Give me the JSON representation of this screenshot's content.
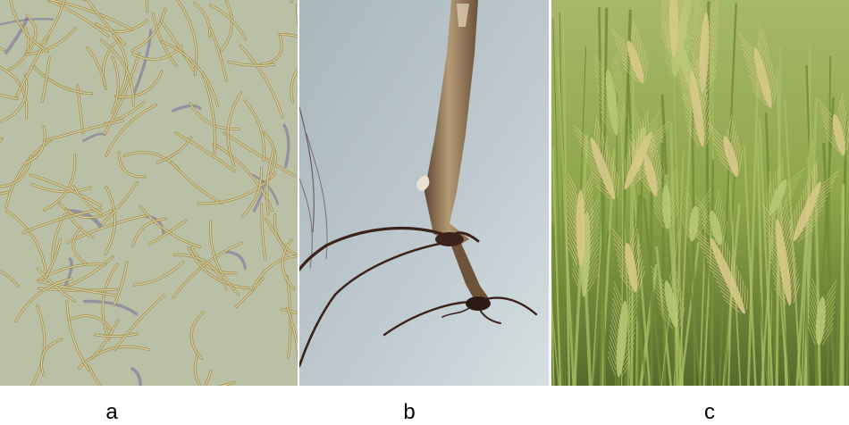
{
  "panels": [
    {
      "label": "a",
      "content": "spores-micrograph"
    },
    {
      "label": "b",
      "content": "root-crown"
    },
    {
      "label": "c",
      "content": "barley-field"
    }
  ],
  "colors": {
    "micrograph_bg": "#b9c0a6",
    "spore_wall": "#a58f4a",
    "stain_purple": "#6a5a9a",
    "photo_bg": "#b9c6cc",
    "stem_brown": "#9c7d56",
    "root_dark": "#3b231c",
    "field_green": "#8fa64a",
    "ear_gold": "#d8c98a"
  }
}
